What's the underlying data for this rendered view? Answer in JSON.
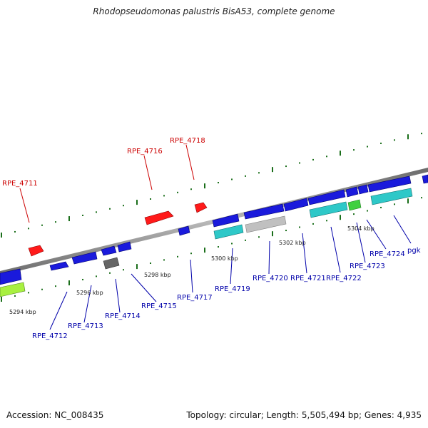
{
  "title": "Rhodopseudomonas palustris BisA53, complete genome",
  "footer": {
    "accession": "Accession: NC_008435",
    "stats": "Topology: circular; Length: 5,505,494 bp; Genes: 4,935"
  },
  "colors": {
    "backbone": "#8c8c8c",
    "tick_green": "#1a6e1a",
    "forward_label": "#cc0000",
    "reverse_label": "#0000aa",
    "cds": "#1a1adc",
    "rna": "#ff1a1a",
    "teal": "#2ec8c8",
    "gray": "#c0c0c0",
    "dark_gray": "#666666",
    "lime": "#a8f040",
    "green": "#40d040"
  },
  "forward_labels": [
    "RPE_4711",
    "RPE_4716",
    "RPE_4718"
  ],
  "reverse_labels": [
    "RPE_4712",
    "RPE_4713",
    "RPE_4714",
    "RPE_4715",
    "RPE_4717",
    "RPE_4719",
    "RPE_4720",
    "RPE_4721",
    "RPE_4722",
    "RPE_4723",
    "RPE_4724",
    "pgk"
  ],
  "tick_labels": [
    "5294 kbp",
    "5296 kbp",
    "5298 kbp",
    "5300 kbp",
    "5302 kbp",
    "5304 kbp"
  ]
}
